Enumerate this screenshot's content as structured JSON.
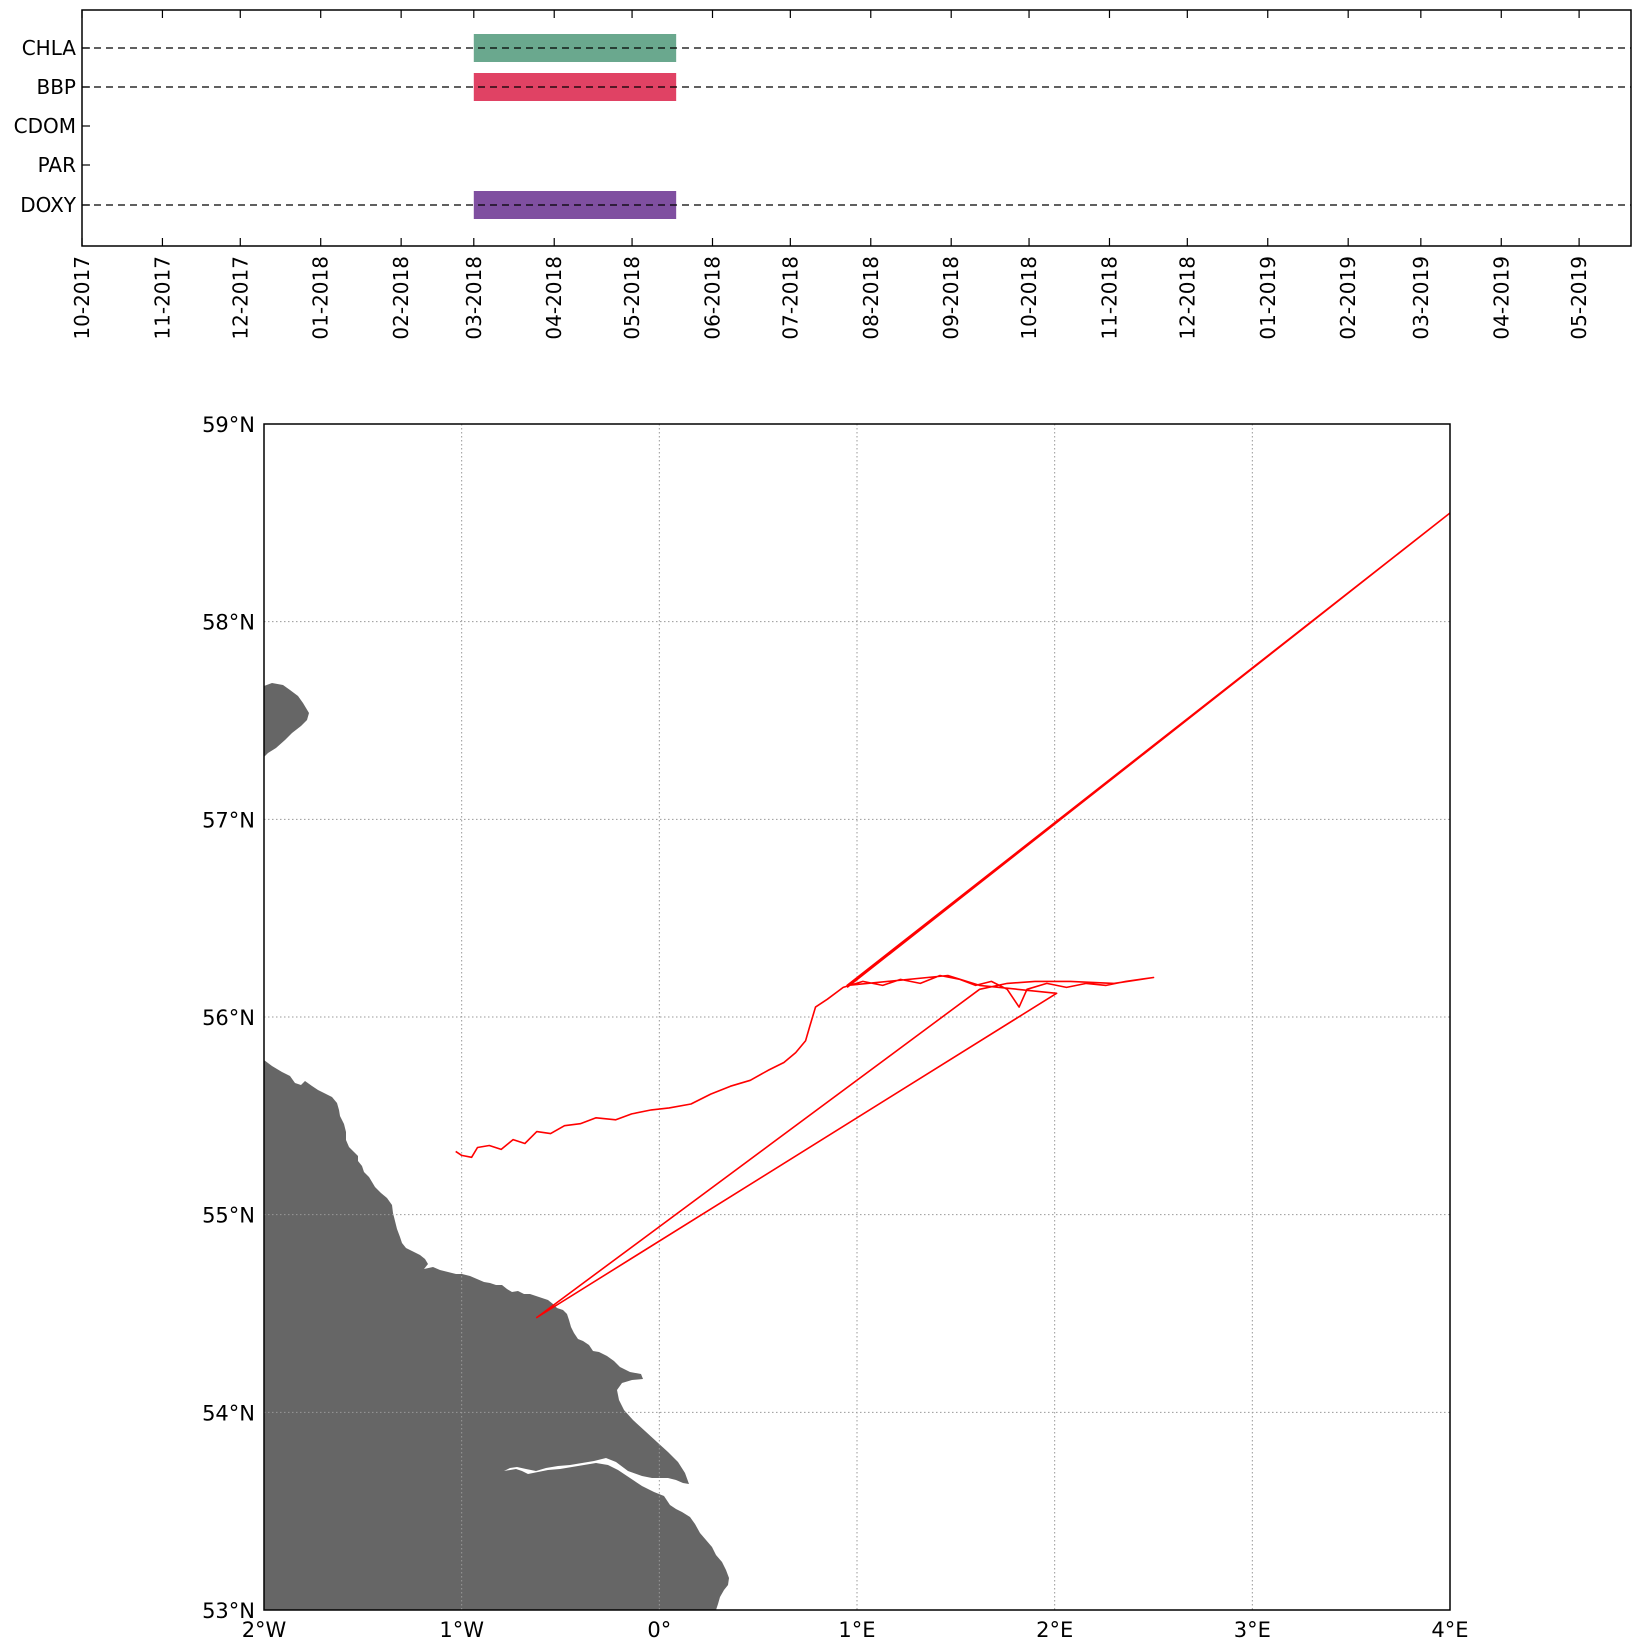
{
  "chart_data": [
    {
      "type": "timeline",
      "title": "",
      "xlabel": "",
      "ylabel": "",
      "categories": [
        "CHLA",
        "BBP",
        "CDOM",
        "PAR",
        "DOXY"
      ],
      "x_tick_labels": [
        "10-2017",
        "11-2017",
        "12-2017",
        "01-2018",
        "02-2018",
        "03-2018",
        "04-2018",
        "05-2018",
        "06-2018",
        "07-2018",
        "08-2018",
        "09-2018",
        "10-2018",
        "11-2018",
        "12-2018",
        "01-2019",
        "02-2019",
        "03-2019",
        "04-2019",
        "05-2019"
      ],
      "xlim": [
        "2017-10-01",
        "2019-05-21"
      ],
      "series": [
        {
          "category": "CHLA",
          "has_data": true,
          "start": "2018-03-01",
          "end": "2018-05-18",
          "color": "#6aa88e"
        },
        {
          "category": "BBP",
          "has_data": true,
          "start": "2018-03-01",
          "end": "2018-05-18",
          "color": "#e04264"
        },
        {
          "category": "CDOM",
          "has_data": false
        },
        {
          "category": "PAR",
          "has_data": false
        },
        {
          "category": "DOXY",
          "has_data": true,
          "start": "2018-03-01",
          "end": "2018-05-18",
          "color": "#7f4fa0"
        }
      ],
      "grid": false,
      "legend": "none"
    },
    {
      "type": "map",
      "title": "",
      "xlim": [
        -2,
        4
      ],
      "ylim": [
        53,
        59
      ],
      "x_tick_labels": [
        "2°W",
        "1°W",
        "0°",
        "1°E",
        "2°E",
        "3°E",
        "4°E"
      ],
      "y_tick_labels": [
        "53°N",
        "54°N",
        "55°N",
        "56°N",
        "57°N",
        "58°N",
        "59°N"
      ],
      "grid": true,
      "land_color": "#666666",
      "track_color": "#ff0000",
      "track": [
        [
          -1.03,
          55.32
        ],
        [
          -1.0,
          55.3
        ],
        [
          -0.95,
          55.29
        ],
        [
          -0.92,
          55.34
        ],
        [
          -0.86,
          55.35
        ],
        [
          -0.8,
          55.33
        ],
        [
          -0.74,
          55.38
        ],
        [
          -0.68,
          55.36
        ],
        [
          -0.62,
          55.42
        ],
        [
          -0.55,
          55.41
        ],
        [
          -0.48,
          55.45
        ],
        [
          -0.4,
          55.46
        ],
        [
          -0.32,
          55.49
        ],
        [
          -0.22,
          55.48
        ],
        [
          -0.14,
          55.51
        ],
        [
          -0.04,
          55.53
        ],
        [
          0.05,
          55.54
        ],
        [
          0.16,
          55.56
        ],
        [
          0.26,
          55.61
        ],
        [
          0.36,
          55.65
        ],
        [
          0.46,
          55.68
        ],
        [
          0.55,
          55.73
        ],
        [
          0.63,
          55.77
        ],
        [
          0.69,
          55.82
        ],
        [
          0.74,
          55.88
        ],
        [
          0.76,
          55.95
        ],
        [
          0.79,
          56.05
        ],
        [
          0.85,
          56.09
        ],
        [
          0.93,
          56.15
        ],
        [
          1.03,
          56.18
        ],
        [
          1.13,
          56.16
        ],
        [
          1.22,
          56.19
        ],
        [
          1.32,
          56.17
        ],
        [
          1.42,
          56.21
        ],
        [
          1.52,
          56.19
        ],
        [
          1.6,
          56.16
        ],
        [
          1.68,
          56.18
        ],
        [
          1.76,
          56.14
        ],
        [
          1.82,
          56.05
        ],
        [
          1.86,
          56.14
        ],
        [
          1.96,
          56.17
        ],
        [
          2.06,
          56.15
        ],
        [
          2.16,
          56.17
        ],
        [
          2.26,
          56.16
        ],
        [
          2.36,
          56.18
        ],
        [
          2.5,
          56.2
        ],
        [
          2.3,
          56.17
        ],
        [
          2.08,
          56.18
        ],
        [
          1.9,
          56.18
        ],
        [
          1.76,
          56.17
        ],
        [
          1.62,
          56.14
        ],
        [
          -0.62,
          54.48
        ],
        [
          2.01,
          56.12
        ],
        [
          1.62,
          56.16
        ],
        [
          1.46,
          56.21
        ],
        [
          0.95,
          56.16
        ],
        [
          4.0,
          58.55
        ],
        [
          0.95,
          56.15
        ]
      ]
    }
  ]
}
